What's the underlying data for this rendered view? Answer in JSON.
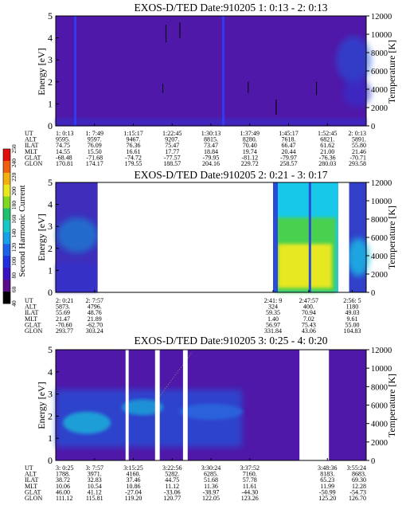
{
  "colors": {
    "background": "#5018a8",
    "gap": "#ffffff",
    "low_band": "#3030d0",
    "mid_band": "#1e5ae0",
    "cyan": "#18c8e8",
    "green": "#48d050",
    "yellow": "#e8e820",
    "line": "#3040ff"
  },
  "colorbar": {
    "label": "Second Harmonic Current",
    "ticks": [
      "40",
      "60",
      "80",
      "100",
      "120",
      "140",
      "160",
      "180",
      "200",
      "220",
      "240",
      "250"
    ],
    "unit_top": "250"
  },
  "chart_data": [
    {
      "type": "heatmap",
      "title": "EXOS-D/TED   Date:910205   1: 0:13 - 2: 0:13",
      "ylabel": "Energy [eV]",
      "y2label": "Temperature [K]",
      "ylim": [
        0,
        5
      ],
      "y2lim": [
        0,
        12000
      ],
      "yticks": [
        "0",
        "1",
        "2",
        "3",
        "4",
        "5"
      ],
      "y2ticks": [
        "0",
        "2000",
        "4000",
        "6000",
        "8000",
        "10000",
        "12000"
      ],
      "time_range": [
        "1: 0:13",
        "2: 0:13"
      ],
      "gaps": [],
      "vertical_lines": [
        0.063,
        0.54
      ],
      "table": {
        "rows": [
          "UT",
          "ALT",
          "ILAT",
          "MLT",
          "GLAT",
          "GLON"
        ],
        "columns": [
          {
            "x": 0.0,
            "values": [
              "1: 0:13",
              "9595.",
              "74.75",
              "14.55",
              "-68.48",
              "170.81"
            ]
          },
          {
            "x": 0.125,
            "values": [
              "1: 7:49",
              "9597.",
              "76.09",
              "15.50",
              "-71.68",
              "174.17"
            ]
          },
          {
            "x": 0.25,
            "values": [
              "1:15:17",
              "9467.",
              "76.36",
              "16.61",
              "-74.72",
              "179.55"
            ]
          },
          {
            "x": 0.375,
            "values": [
              "1:22:45",
              "9207.",
              "75.47",
              "17.77",
              "-77.57",
              "188.57"
            ]
          },
          {
            "x": 0.5,
            "values": [
              "1:30:13",
              "8815.",
              "73.47",
              "18.84",
              "-79.95",
              "204.16"
            ]
          },
          {
            "x": 0.625,
            "values": [
              "1:37:49",
              "8280.",
              "70.40",
              "19.74",
              "-81.12",
              "229.72"
            ]
          },
          {
            "x": 0.75,
            "values": [
              "1:45:17",
              "7618.",
              "66.47",
              "20.44",
              "-79.97",
              "258.57"
            ]
          },
          {
            "x": 0.875,
            "values": [
              "1:52:45",
              "6821.",
              "61.62",
              "21.00",
              "-76.36",
              "280.03"
            ]
          },
          {
            "x": 1.0,
            "values": [
              "2: 0:13",
              "5891.",
              "55.80",
              "21.46",
              "-70.71",
              "293.58"
            ]
          }
        ]
      }
    },
    {
      "type": "heatmap",
      "title": "EXOS-D/TED   Date:910205   2: 0:21 - 3: 0:17",
      "ylabel": "Energy [eV]",
      "y2label": "Temperature [K]",
      "ylim": [
        0,
        5
      ],
      "y2lim": [
        0,
        12000
      ],
      "yticks": [
        "0",
        "1",
        "2",
        "3",
        "4",
        "5"
      ],
      "y2ticks": [
        "0",
        "2000",
        "4000",
        "6000",
        "8000",
        "10000",
        "12000"
      ],
      "time_range": [
        "2: 0:21",
        "3: 0:17"
      ],
      "gaps": [
        [
          0.135,
          0.7
        ],
        [
          0.91,
          0.945
        ]
      ],
      "vertical_lines": [],
      "table": {
        "rows": [
          "UT",
          "ALT",
          "ILAT",
          "MLT",
          "GLAT",
          "GLON"
        ],
        "columns": [
          {
            "x": 0.0,
            "values": [
              "2: 0:21",
              "5873.",
              "55.69",
              "21.47",
              "-70.60",
              "293.77"
            ]
          },
          {
            "x": 0.125,
            "values": [
              "2: 7:57",
              "4796.",
              "48.76",
              "21.89",
              "-62.70",
              "303.24"
            ]
          },
          {
            "x": 0.7,
            "values": [
              "2:41: 9",
              "324",
              "59.35",
              "1.40",
              "56.97",
              "331.84"
            ]
          },
          {
            "x": 0.815,
            "values": [
              "2:47:57",
              "400.",
              "70.94",
              "7.02",
              "75.43",
              "43.06"
            ]
          },
          {
            "x": 0.955,
            "values": [
              "2:56: 5",
              "1180",
              "49.03",
              "9.61",
              "55.00",
              "104.83"
            ]
          }
        ]
      }
    },
    {
      "type": "heatmap",
      "title": "EXOS-D/TED   Date:910205   3: 0:25 - 4: 0:20",
      "ylabel": "Energy [eV]",
      "y2label": "Temperature [K]",
      "ylim": [
        0,
        5
      ],
      "y2lim": [
        0,
        12000
      ],
      "yticks": [
        "0",
        "1",
        "2",
        "3",
        "4",
        "5"
      ],
      "y2ticks": [
        "0",
        "2000",
        "4000",
        "6000",
        "8000",
        "10000",
        "12000"
      ],
      "time_range": [
        "3: 0:25",
        "4: 0:20"
      ],
      "gaps": [
        [
          0.225,
          0.235
        ],
        [
          0.32,
          0.335
        ],
        [
          0.41,
          0.425
        ],
        [
          0.785,
          0.88
        ]
      ],
      "vertical_lines": [],
      "table": {
        "rows": [
          "UT",
          "ALT",
          "ILAT",
          "MLT",
          "GLAT",
          "GLON"
        ],
        "columns": [
          {
            "x": 0.0,
            "values": [
              "3: 0:25",
              "1788.",
              "38.72",
              "10.06",
              "46.00",
              "111.12"
            ]
          },
          {
            "x": 0.125,
            "values": [
              "3: 7:57",
              "3971.",
              "32.83",
              "10.54",
              "41.12",
              "115.81"
            ]
          },
          {
            "x": 0.25,
            "values": [
              "3:15:25",
              "4160.",
              "37.46",
              "10.86",
              "-27.04",
              "119.20"
            ]
          },
          {
            "x": 0.375,
            "values": [
              "3:22:56",
              "5282.",
              "44.75",
              "11.12",
              "-33.06",
              "120.77"
            ]
          },
          {
            "x": 0.5,
            "values": [
              "3:30:24",
              "6285.",
              "51.68",
              "11.36",
              "-38.97",
              "122.05"
            ]
          },
          {
            "x": 0.625,
            "values": [
              "3:37:52",
              "7160.",
              "57.78",
              "11.61",
              "-44.30",
              "123.26"
            ]
          },
          {
            "x": 0.875,
            "values": [
              "3:48:36",
              "8183.",
              "65.23",
              "11.99",
              "-50.99",
              "125.20"
            ]
          },
          {
            "x": 1.0,
            "values": [
              "3:55:24",
              "8683.",
              "69.30",
              "12.28",
              "-54.73",
              "126.70"
            ]
          }
        ]
      }
    }
  ]
}
